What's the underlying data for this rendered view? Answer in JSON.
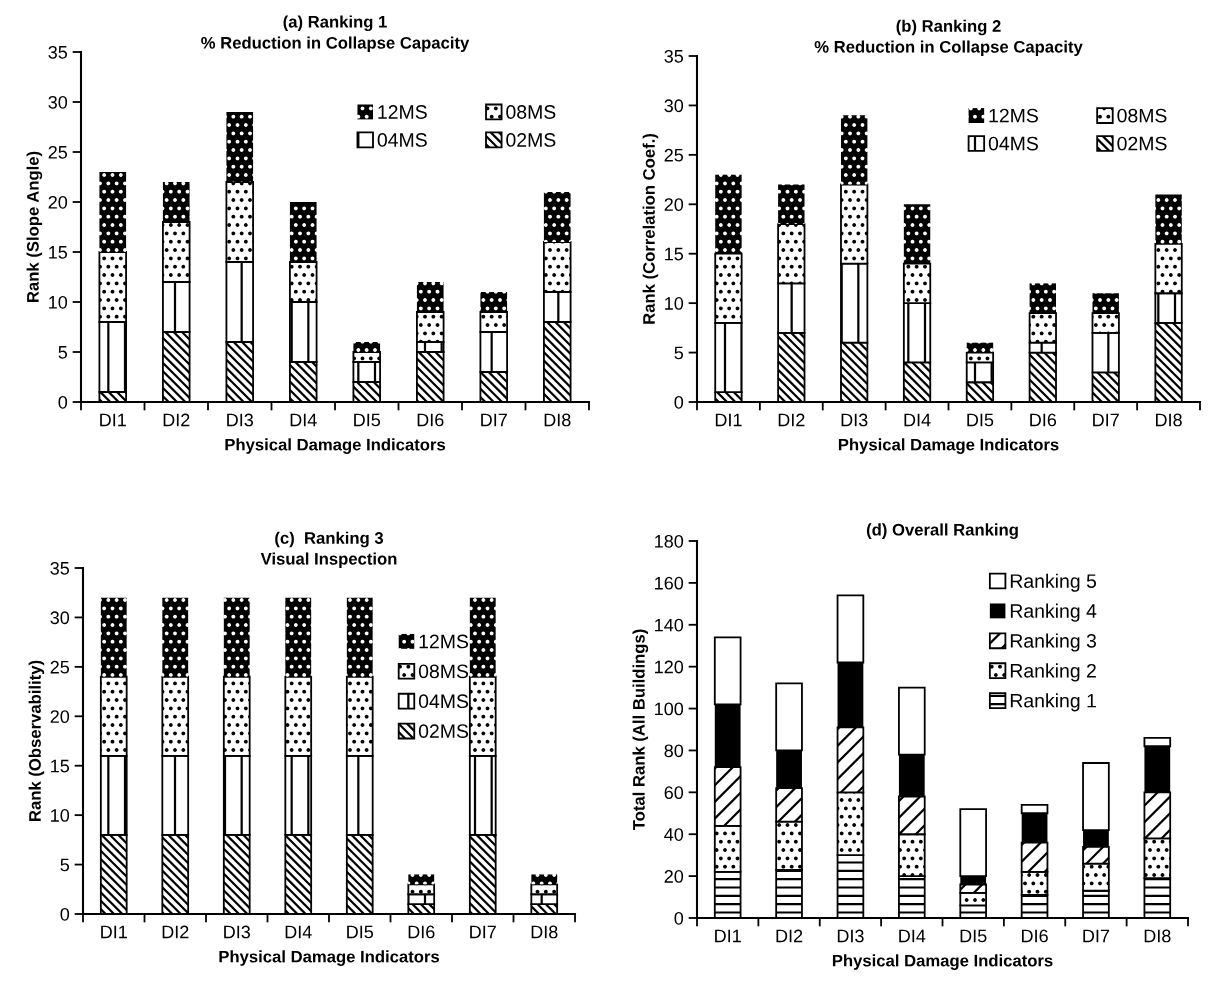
{
  "chart_data": [
    {
      "type": "bar",
      "stacked": true,
      "title": "(a) Ranking 1",
      "subtitle": "% Reduction in Collapse Capacity",
      "xlabel": "Physical Damage Indicators",
      "ylabel": "Rank (Slope Angle)",
      "categories": [
        "DI1",
        "DI2",
        "DI3",
        "DI4",
        "DI5",
        "DI6",
        "DI7",
        "DI8"
      ],
      "ylim": [
        0,
        35
      ],
      "yticks": [
        0,
        5,
        10,
        15,
        20,
        25,
        30,
        35
      ],
      "grid": false,
      "legend": "top right",
      "series": [
        {
          "name": "02MS",
          "values": [
            1,
            7,
            6,
            4,
            2,
            5,
            3,
            8
          ]
        },
        {
          "name": "04MS",
          "values": [
            7,
            5,
            8,
            6,
            2,
            1,
            4,
            3
          ]
        },
        {
          "name": "08MS",
          "values": [
            7,
            6,
            8,
            4,
            1,
            3,
            2,
            5
          ]
        },
        {
          "name": "12MS",
          "values": [
            8,
            4,
            7,
            6,
            1,
            3,
            2,
            5
          ]
        }
      ]
    },
    {
      "type": "bar",
      "stacked": true,
      "title": "(b) Ranking 2",
      "subtitle": "% Reduction in Collapse Capacity",
      "xlabel": "Physical Damage Indicators",
      "ylabel": "Rank (Correlation Coef.)",
      "categories": [
        "DI1",
        "DI2",
        "DI3",
        "DI4",
        "DI5",
        "DI6",
        "DI7",
        "DI8"
      ],
      "ylim": [
        0,
        35
      ],
      "yticks": [
        0,
        5,
        10,
        15,
        20,
        25,
        30,
        35
      ],
      "grid": false,
      "legend": "top right",
      "series": [
        {
          "name": "02MS",
          "values": [
            1,
            7,
            6,
            4,
            2,
            5,
            3,
            8
          ]
        },
        {
          "name": "04MS",
          "values": [
            7,
            5,
            8,
            6,
            2,
            1,
            4,
            3
          ]
        },
        {
          "name": "08MS",
          "values": [
            7,
            6,
            8,
            4,
            1,
            3,
            2,
            5
          ]
        },
        {
          "name": "12MS",
          "values": [
            8,
            4,
            7,
            6,
            1,
            3,
            2,
            5
          ]
        }
      ]
    },
    {
      "type": "bar",
      "stacked": true,
      "title": "(c)  Ranking 3",
      "subtitle": "Visual Inspection",
      "xlabel": "Physical Damage Indicators",
      "ylabel": "Rank (Observability)",
      "categories": [
        "DI1",
        "DI2",
        "DI3",
        "DI4",
        "DI5",
        "DI6",
        "DI7",
        "DI8"
      ],
      "ylim": [
        0,
        35
      ],
      "yticks": [
        0,
        5,
        10,
        15,
        20,
        25,
        30,
        35
      ],
      "grid": false,
      "legend": "top right",
      "series": [
        {
          "name": "02MS",
          "values": [
            8,
            8,
            8,
            8,
            8,
            1,
            8,
            1
          ]
        },
        {
          "name": "04MS",
          "values": [
            8,
            8,
            8,
            8,
            8,
            1,
            8,
            1
          ]
        },
        {
          "name": "08MS",
          "values": [
            8,
            8,
            8,
            8,
            8,
            1,
            8,
            1
          ]
        },
        {
          "name": "12MS",
          "values": [
            8,
            8,
            8,
            8,
            8,
            1,
            8,
            1
          ]
        }
      ]
    },
    {
      "type": "bar",
      "stacked": true,
      "title": "(d) Overall Ranking",
      "xlabel": "Physical Damage Indicators",
      "ylabel": "Total Rank (All Buildings)",
      "categories": [
        "DI1",
        "DI2",
        "DI3",
        "DI4",
        "DI5",
        "DI6",
        "DI7",
        "DI8"
      ],
      "ylim": [
        0,
        180
      ],
      "yticks": [
        0,
        20,
        40,
        60,
        80,
        100,
        120,
        140,
        160,
        180
      ],
      "grid": false,
      "legend": "top right",
      "series": [
        {
          "name": "Ranking 1",
          "values": [
            22,
            23,
            30,
            20,
            6,
            11,
            13,
            19
          ]
        },
        {
          "name": "Ranking 2",
          "values": [
            22,
            23,
            30,
            20,
            6,
            11,
            13,
            19
          ]
        },
        {
          "name": "Ranking 3",
          "values": [
            28,
            16,
            31,
            18,
            4,
            14,
            8,
            22
          ]
        },
        {
          "name": "Ranking 4",
          "values": [
            30,
            18,
            31,
            20,
            4,
            14,
            8,
            22
          ]
        },
        {
          "name": "Ranking 5",
          "values": [
            32,
            32,
            32,
            32,
            32,
            4,
            32,
            4
          ]
        }
      ]
    }
  ]
}
